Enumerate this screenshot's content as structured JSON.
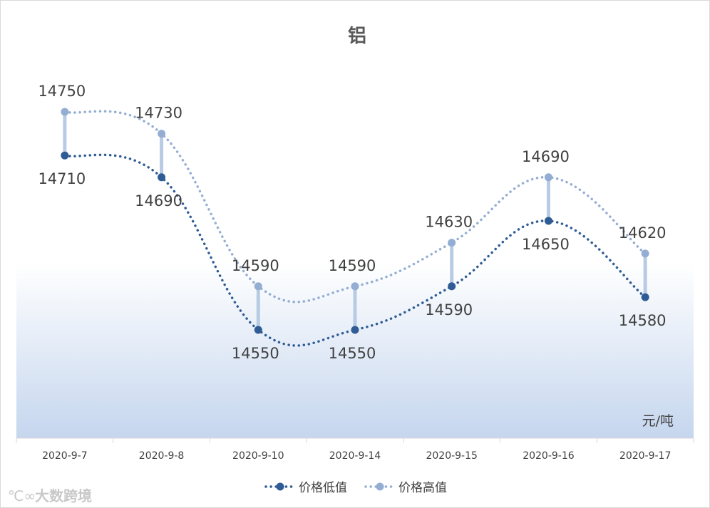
{
  "chart_data": {
    "type": "line",
    "title": "铝",
    "unit_label": "元/吨",
    "categories": [
      "2020-9-7",
      "2020-9-8",
      "2020-9-10",
      "2020-9-14",
      "2020-9-15",
      "2020-9-16",
      "2020-9-17"
    ],
    "series": [
      {
        "name": "价格低值",
        "values": [
          14710,
          14690,
          14550,
          14550,
          14590,
          14650,
          14580
        ],
        "color": "#2f5c94"
      },
      {
        "name": "价格高值",
        "values": [
          14750,
          14730,
          14590,
          14590,
          14630,
          14690,
          14620
        ],
        "color": "#94aed3"
      }
    ],
    "high_low_lines": true,
    "smooth": true,
    "line_style": "dotted",
    "grid": false,
    "legend_position": "bottom",
    "plot_background": "gradient white to light blue",
    "drop_line_color": "#b8cbe4"
  },
  "watermark": "大数跨境"
}
